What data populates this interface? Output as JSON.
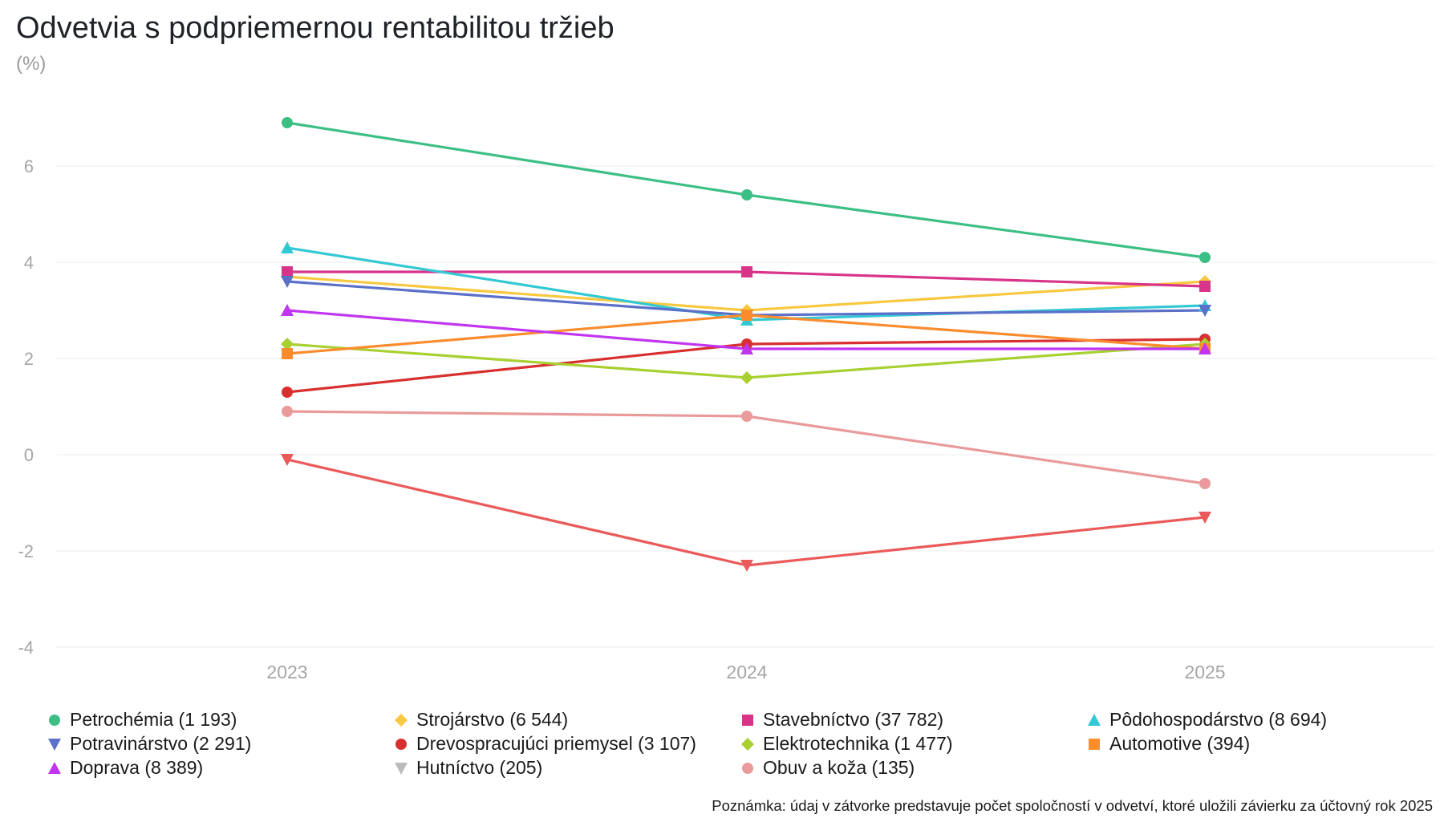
{
  "title": "Odvetvia s podpriemernou rentabilitou tržieb",
  "subtitle": "(%)",
  "note": "Poznámka: údaj v zátvorke predstavuje počet spoločností v odvetví, ktoré uložili závierku za účtovný rok 2025",
  "chart_data": {
    "type": "line",
    "title": "Odvetvia s podpriemernou rentabilitou tržieb",
    "ylabel": "(%)",
    "xlabel": "",
    "x": [
      "2023",
      "2024",
      "2025"
    ],
    "ylim": [
      -4,
      7.5
    ],
    "yticks": [
      -4,
      -2,
      0,
      2,
      4,
      6
    ],
    "grid": true,
    "legend_position": "bottom",
    "series": [
      {
        "name": "Petrochémia (1 193)",
        "color": "#3cbf85",
        "marker": "circle",
        "values": [
          6.9,
          5.4,
          4.1
        ]
      },
      {
        "name": "Strojárstvo (6 544)",
        "color": "#f8c840",
        "marker": "diamond",
        "values": [
          3.7,
          3.0,
          3.6
        ]
      },
      {
        "name": "Stavebníctvo (37 782)",
        "color": "#d8348a",
        "marker": "square",
        "values": [
          3.8,
          3.8,
          3.5
        ]
      },
      {
        "name": "Pôdohospodárstvo (8 694)",
        "color": "#33c9d4",
        "marker": "triangle-up",
        "values": [
          4.3,
          2.8,
          3.1
        ]
      },
      {
        "name": "Potravinárstvo (2 291)",
        "color": "#5b70c8",
        "marker": "triangle-down",
        "values": [
          3.6,
          2.9,
          3.0
        ]
      },
      {
        "name": "Drevospracujúci priemysel (3 107)",
        "color": "#d8302f",
        "marker": "circle",
        "values": [
          1.3,
          2.3,
          2.4
        ]
      },
      {
        "name": "Elektrotechnika (1 477)",
        "color": "#a8d031",
        "marker": "diamond",
        "values": [
          2.3,
          1.6,
          2.3
        ]
      },
      {
        "name": "Automotive (394)",
        "color": "#fb8c2e",
        "marker": "square",
        "values": [
          2.1,
          2.9,
          2.2
        ]
      },
      {
        "name": "Doprava (8 389)",
        "color": "#c135f0",
        "marker": "triangle-up",
        "values": [
          3.0,
          2.2,
          2.2
        ]
      },
      {
        "name": "Hutníctvo (205)",
        "color": "#eb5a5a",
        "legend_color": "#bbbbbb",
        "marker": "triangle-down",
        "values": [
          -0.1,
          -2.3,
          -1.3
        ]
      },
      {
        "name": "Obuv a koža (135)",
        "color": "#e99a9a",
        "marker": "circle",
        "values": [
          0.9,
          0.8,
          -0.6
        ]
      }
    ]
  },
  "legend_rows": [
    [
      0,
      1,
      2,
      3
    ],
    [
      4,
      5,
      6,
      7
    ],
    [
      8,
      9,
      10
    ]
  ]
}
